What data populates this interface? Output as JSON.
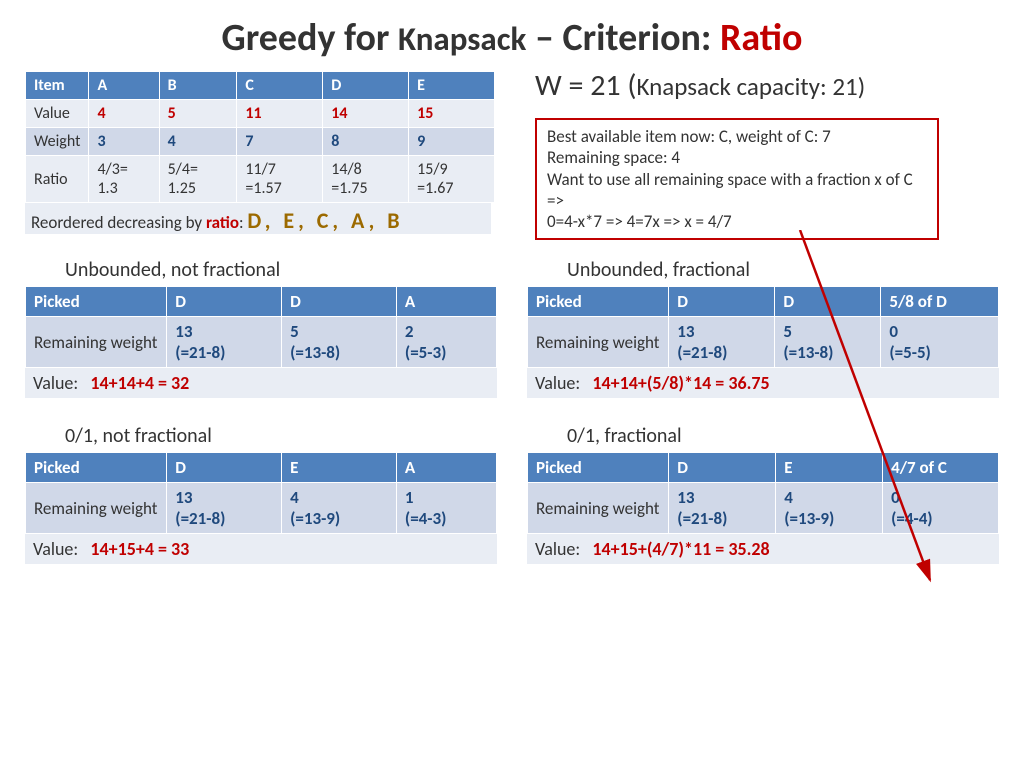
{
  "title": {
    "pre": "Greedy for ",
    "mid": "Knapsack",
    "dash": " – ",
    "crit": "Criterion: ",
    "ratio": "Ratio"
  },
  "capacity": {
    "main": "W = 21  (",
    "sub": "Knapsack capacity: 21)",
    "close": ""
  },
  "itemTable": {
    "headers": [
      "Item",
      "A",
      "B",
      "C",
      "D",
      "E"
    ],
    "rows": [
      {
        "label": "Value",
        "cells": [
          "4",
          "5",
          "11",
          "14",
          "15"
        ],
        "color": "darkred"
      },
      {
        "label": "Weight",
        "cells": [
          "3",
          "4",
          "7",
          "8",
          "9"
        ],
        "color": "steelblue"
      },
      {
        "label": "Ratio",
        "cells": [
          "4/3= 1.3",
          "5/4= 1.25",
          "11/7 =1.57",
          "14/8 =1.75",
          "15/9 =1.67"
        ],
        "color": "plain"
      }
    ]
  },
  "reorder": {
    "pre": "Reordered decreasing by ",
    "kw": "ratio",
    "post": ": ",
    "order": "D,  E,  C,  A,  B"
  },
  "callout": {
    "l1": "Best available item now: C, weight of C: 7",
    "l2": "Remaining space: 4",
    "l3": "Want to use all remaining space with a fraction x of C =>",
    "l4": "0=4-x*7 => 4=7x =>  x = 4/7"
  },
  "panels": {
    "ul": {
      "label": "Unbounded, not fractional",
      "picks": [
        "D",
        "D",
        "A"
      ],
      "remain": [
        "13",
        "5",
        "2"
      ],
      "calc": [
        "(=21-8)",
        "(=13-8)",
        "(=5-3)"
      ],
      "value": "14+14+4 = 32"
    },
    "ur": {
      "label": "Unbounded, fractional",
      "picks": [
        "D",
        "D",
        "5/8 of D"
      ],
      "remain": [
        "13",
        "5",
        "0"
      ],
      "calc": [
        "(=21-8)",
        "(=13-8)",
        "(=5-5)"
      ],
      "value": "14+14+(5/8)*14 = 36.75"
    },
    "ll": {
      "label": "0/1,  not fractional",
      "picks": [
        "D",
        "E",
        "A"
      ],
      "remain": [
        "13",
        "4",
        "1"
      ],
      "calc": [
        "(=21-8)",
        "(=13-9)",
        "(=4-3)"
      ],
      "value": "14+15+4 = 33"
    },
    "lr": {
      "label": "0/1, fractional",
      "picks": [
        "D",
        "E",
        "4/7 of C"
      ],
      "remain": [
        "13",
        "4",
        "0"
      ],
      "calc": [
        "(=21-8)",
        "(=13-9)",
        "(=4-4)"
      ],
      "value": "14+15+(4/7)*11 = 35.28"
    }
  },
  "labels": {
    "picked": "Picked",
    "remaining": "Remaining weight",
    "value": "Value:"
  },
  "colors": {
    "header": "#4f81bd",
    "accent": "#c00000",
    "steel": "#1f497d",
    "alt0": "#e9edf4",
    "alt1": "#d0d8e8"
  }
}
